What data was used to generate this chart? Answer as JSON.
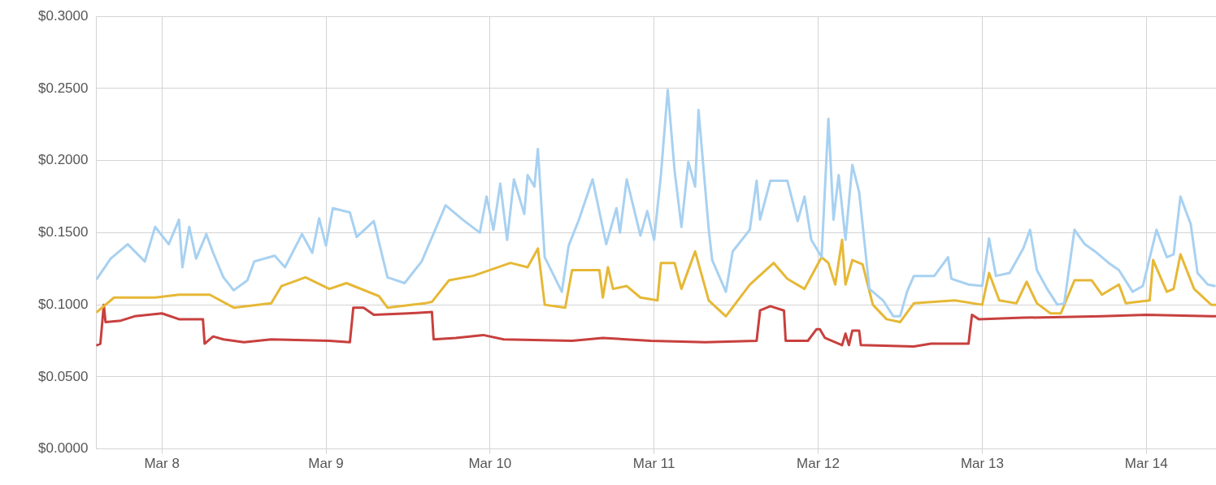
{
  "chart_data": {
    "type": "line",
    "marker": "none",
    "line_style": "solid",
    "grid": true,
    "legend": false,
    "xlim": [
      "--03-07T14:24",
      "--03-14T10:12"
    ],
    "xticks": [
      {
        "value": "--03-08",
        "label": "Mar 8"
      },
      {
        "value": "--03-09",
        "label": "Mar 9"
      },
      {
        "value": "--03-10",
        "label": "Mar 10"
      },
      {
        "value": "--03-11",
        "label": "Mar 11"
      },
      {
        "value": "--03-12",
        "label": "Mar 12"
      },
      {
        "value": "--03-13",
        "label": "Mar 13"
      },
      {
        "value": "--03-14",
        "label": "Mar 14"
      }
    ],
    "ylim": [
      0,
      0.3
    ],
    "yticks": [
      {
        "value": 0,
        "label": "$0.0000"
      },
      {
        "value": 0.05,
        "label": "$0.0500"
      },
      {
        "value": 0.1,
        "label": "$0.1000"
      },
      {
        "value": 0.15,
        "label": "$0.1500"
      },
      {
        "value": 0.2,
        "label": "$0.2000"
      },
      {
        "value": 0.25,
        "label": "$0.2500"
      },
      {
        "value": 0.3,
        "label": "$0.3000"
      }
    ],
    "series": [
      {
        "color": "#a8d1f1",
        "x": [
          "--03-07T14:30",
          "--03-07T16:30",
          "--03-07T19:00",
          "--03-07T21:30",
          "--03-07T23:00",
          "--03-08T01:00",
          "--03-08T02:30",
          "--03-08T03:00",
          "--03-08T04:00",
          "--03-08T05:00",
          "--03-08T06:30",
          "--03-08T07:30",
          "--03-08T09:00",
          "--03-08T10:30",
          "--03-08T12:30",
          "--03-08T13:30",
          "--03-08T16:30",
          "--03-08T18:00",
          "--03-08T20:30",
          "--03-08T22:00",
          "--03-08T23:00",
          "--03-09T00:00",
          "--03-09T01:00",
          "--03-09T03:30",
          "--03-09T04:30",
          "--03-09T07:00",
          "--03-09T09:00",
          "--03-09T11:30",
          "--03-09T14:00",
          "--03-09T17:30",
          "--03-09T20:00",
          "--03-09T22:30",
          "--03-09T23:30",
          "--03-10T00:30",
          "--03-10T01:30",
          "--03-10T02:30",
          "--03-10T03:30",
          "--03-10T05:00",
          "--03-10T05:30",
          "--03-10T06:30",
          "--03-10T07:00",
          "--03-10T08:00",
          "--03-10T10:30",
          "--03-10T11:30",
          "--03-10T13:00",
          "--03-10T15:00",
          "--03-10T17:00",
          "--03-10T18:30",
          "--03-10T19:00",
          "--03-10T20:00",
          "--03-10T22:00",
          "--03-10T23:00",
          "--03-11T00:00",
          "--03-11T01:00",
          "--03-11T02:00",
          "--03-11T03:00",
          "--03-11T04:00",
          "--03-11T05:00",
          "--03-11T06:00",
          "--03-11T06:30",
          "--03-11T08:00",
          "--03-11T08:30",
          "--03-11T10:30",
          "--03-11T11:30",
          "--03-11T14:00",
          "--03-11T15:00",
          "--03-11T15:30",
          "--03-11T17:00",
          "--03-11T19:30",
          "--03-11T21:00",
          "--03-11T22:00",
          "--03-11T23:00",
          "--03-12T00:30",
          "--03-12T01:30",
          "--03-12T02:15",
          "--03-12T03:00",
          "--03-12T04:00",
          "--03-12T05:00",
          "--03-12T06:00",
          "--03-12T07:30",
          "--03-12T09:30",
          "--03-12T11:00",
          "--03-12T12:00",
          "--03-12T13:00",
          "--03-12T14:00",
          "--03-12T17:00",
          "--03-12T19:00",
          "--03-12T19:30",
          "--03-12T22:00",
          "--03-13T00:00",
          "--03-13T01:00",
          "--03-13T02:00",
          "--03-13T04:00",
          "--03-13T06:00",
          "--03-13T07:00",
          "--03-13T08:00",
          "--03-13T09:30",
          "--03-13T11:00",
          "--03-13T12:00",
          "--03-13T13:30",
          "--03-13T15:00",
          "--03-13T16:30",
          "--03-13T18:30",
          "--03-13T20:00",
          "--03-13T22:00",
          "--03-13T23:30",
          "--03-14T01:30",
          "--03-14T03:00",
          "--03-14T04:00",
          "--03-14T05:00",
          "--03-14T06:30",
          "--03-14T07:30",
          "--03-14T09:00",
          "--03-14T10:00"
        ],
        "values": [
          0.118,
          0.132,
          0.142,
          0.13,
          0.154,
          0.142,
          0.159,
          0.126,
          0.154,
          0.132,
          0.149,
          0.136,
          0.119,
          0.11,
          0.117,
          0.13,
          0.134,
          0.126,
          0.149,
          0.136,
          0.16,
          0.141,
          0.167,
          0.164,
          0.147,
          0.158,
          0.119,
          0.115,
          0.13,
          0.169,
          0.159,
          0.15,
          0.175,
          0.152,
          0.184,
          0.145,
          0.187,
          0.163,
          0.19,
          0.182,
          0.208,
          0.133,
          0.109,
          0.141,
          0.159,
          0.187,
          0.142,
          0.167,
          0.15,
          0.187,
          0.148,
          0.165,
          0.145,
          0.19,
          0.249,
          0.193,
          0.154,
          0.199,
          0.182,
          0.235,
          0.152,
          0.131,
          0.109,
          0.137,
          0.152,
          0.186,
          0.159,
          0.186,
          0.186,
          0.158,
          0.175,
          0.145,
          0.133,
          0.229,
          0.159,
          0.19,
          0.145,
          0.197,
          0.178,
          0.111,
          0.103,
          0.092,
          0.092,
          0.109,
          0.12,
          0.12,
          0.133,
          0.118,
          0.114,
          0.113,
          0.146,
          0.12,
          0.122,
          0.139,
          0.152,
          0.124,
          0.111,
          0.1,
          0.101,
          0.152,
          0.142,
          0.137,
          0.129,
          0.124,
          0.109,
          0.113,
          0.152,
          0.133,
          0.135,
          0.175,
          0.156,
          0.122,
          0.114,
          0.113
        ]
      },
      {
        "color": "#e6b836",
        "x": [
          "--03-07T14:30",
          "--03-07T17:00",
          "--03-07T23:00",
          "--03-08T02:30",
          "--03-08T07:00",
          "--03-08T10:30",
          "--03-08T16:00",
          "--03-08T17:30",
          "--03-08T21:00",
          "--03-09T00:30",
          "--03-09T03:00",
          "--03-09T07:45",
          "--03-09T09:00",
          "--03-09T14:30",
          "--03-09T15:30",
          "--03-09T18:00",
          "--03-09T21:30",
          "--03-10T03:00",
          "--03-10T05:30",
          "--03-10T07:00",
          "--03-10T08:00",
          "--03-10T11:00",
          "--03-10T12:00",
          "--03-10T16:00",
          "--03-10T16:30",
          "--03-10T17:15",
          "--03-10T18:00",
          "--03-10T20:00",
          "--03-10T22:00",
          "--03-11T00:30",
          "--03-11T01:00",
          "--03-11T03:00",
          "--03-11T04:00",
          "--03-11T06:00",
          "--03-11T08:00",
          "--03-11T10:30",
          "--03-11T14:00",
          "--03-11T17:30",
          "--03-11T19:30",
          "--03-11T22:00",
          "--03-12T00:30",
          "--03-12T01:30",
          "--03-12T02:30",
          "--03-12T03:30",
          "--03-12T04:00",
          "--03-12T05:00",
          "--03-12T06:30",
          "--03-12T08:00",
          "--03-12T10:00",
          "--03-12T12:00",
          "--03-12T14:00",
          "--03-12T20:00",
          "--03-13T00:00",
          "--03-13T01:00",
          "--03-13T02:30",
          "--03-13T05:00",
          "--03-13T06:30",
          "--03-13T08:00",
          "--03-13T10:00",
          "--03-13T11:30",
          "--03-13T13:30",
          "--03-13T16:00",
          "--03-13T17:30",
          "--03-13T20:00",
          "--03-13T21:00",
          "--03-14T00:30",
          "--03-14T01:00",
          "--03-14T03:00",
          "--03-14T04:00",
          "--03-14T05:00",
          "--03-14T07:00",
          "--03-14T09:30",
          "--03-14T10:12"
        ],
        "values": [
          0.095,
          0.105,
          0.105,
          0.107,
          0.107,
          0.098,
          0.101,
          0.113,
          0.119,
          0.111,
          0.115,
          0.106,
          0.098,
          0.101,
          0.102,
          0.117,
          0.12,
          0.129,
          0.126,
          0.139,
          0.1,
          0.098,
          0.124,
          0.124,
          0.105,
          0.126,
          0.111,
          0.113,
          0.105,
          0.103,
          0.129,
          0.129,
          0.111,
          0.137,
          0.103,
          0.092,
          0.114,
          0.129,
          0.118,
          0.111,
          0.133,
          0.129,
          0.114,
          0.145,
          0.114,
          0.131,
          0.128,
          0.1,
          0.09,
          0.088,
          0.101,
          0.103,
          0.1,
          0.122,
          0.103,
          0.101,
          0.116,
          0.101,
          0.094,
          0.094,
          0.117,
          0.117,
          0.107,
          0.114,
          0.101,
          0.103,
          0.131,
          0.109,
          0.111,
          0.135,
          0.111,
          0.1,
          0.1
        ]
      },
      {
        "color": "#c8403e",
        "x": [
          "--03-07T14:30",
          "--03-07T15:00",
          "--03-07T15:30",
          "--03-07T15:45",
          "--03-07T18:00",
          "--03-07T20:00",
          "--03-08T00:00",
          "--03-08T02:30",
          "--03-08T06:00",
          "--03-08T06:15",
          "--03-08T07:30",
          "--03-08T09:00",
          "--03-08T12:00",
          "--03-08T16:00",
          "--03-09T00:30",
          "--03-09T03:30",
          "--03-09T04:00",
          "--03-09T05:30",
          "--03-09T07:00",
          "--03-09T12:00",
          "--03-09T15:30",
          "--03-09T15:45",
          "--03-09T19:00",
          "--03-09T23:00",
          "--03-10T02:00",
          "--03-10T12:00",
          "--03-10T16:30",
          "--03-10T23:30",
          "--03-11T07:30",
          "--03-11T15:00",
          "--03-11T15:30",
          "--03-11T17:00",
          "--03-11T19:00",
          "--03-11T19:15",
          "--03-11T22:30",
          "--03-11T23:45",
          "--03-12T00:15",
          "--03-12T01:00",
          "--03-12T03:30",
          "--03-12T04:00",
          "--03-12T04:30",
          "--03-12T05:00",
          "--03-12T06:00",
          "--03-12T06:15",
          "--03-12T14:00",
          "--03-12T16:30",
          "--03-12T22:00",
          "--03-12T22:30",
          "--03-12T23:30",
          "--03-13T06:00",
          "--03-13T17:30",
          "--03-14T00:00",
          "--03-14T09:30",
          "--03-14T10:12"
        ],
        "values": [
          0.072,
          0.073,
          0.1,
          0.088,
          0.089,
          0.092,
          0.094,
          0.09,
          0.09,
          0.073,
          0.078,
          0.076,
          0.074,
          0.076,
          0.075,
          0.074,
          0.098,
          0.098,
          0.093,
          0.094,
          0.095,
          0.076,
          0.077,
          0.079,
          0.076,
          0.075,
          0.077,
          0.075,
          0.074,
          0.075,
          0.096,
          0.099,
          0.096,
          0.075,
          0.075,
          0.083,
          0.083,
          0.077,
          0.072,
          0.08,
          0.072,
          0.082,
          0.082,
          0.072,
          0.071,
          0.073,
          0.073,
          0.093,
          0.09,
          0.091,
          0.092,
          0.093,
          0.092,
          0.092
        ]
      }
    ]
  }
}
